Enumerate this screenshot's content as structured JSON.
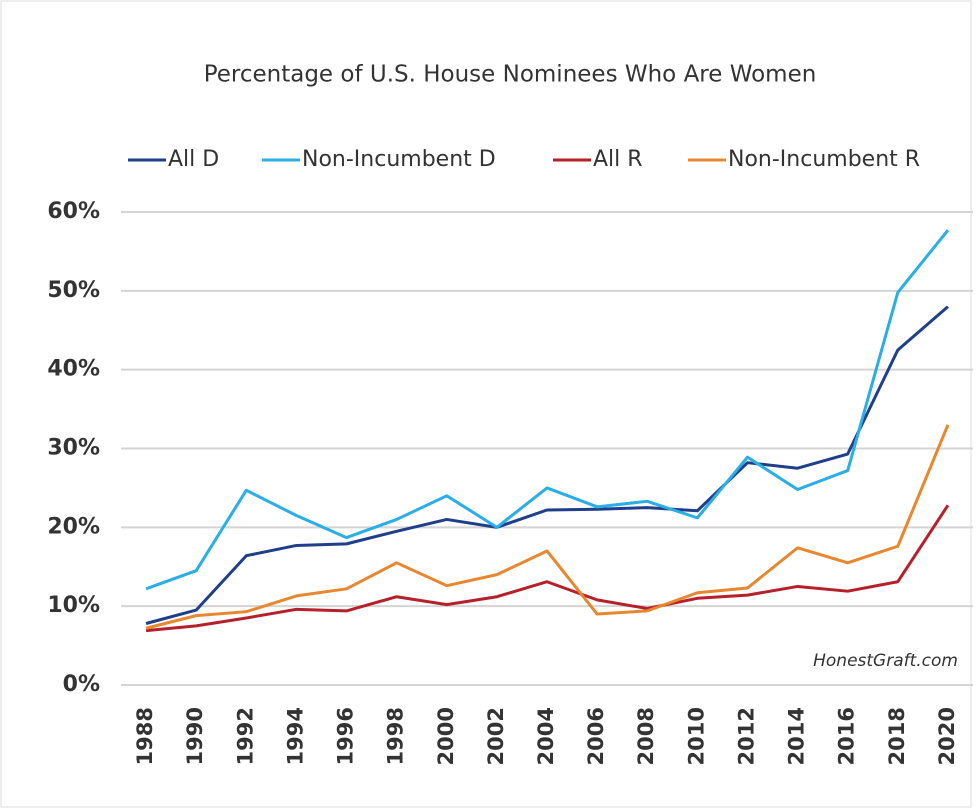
{
  "chart_data": {
    "type": "line",
    "title": "Percentage of U.S. House Nominees Who Are Women",
    "annotation": "HonestGraft.com",
    "categories": [
      "1988",
      "1990",
      "1992",
      "1994",
      "1996",
      "1998",
      "2000",
      "2002",
      "2004",
      "2006",
      "2008",
      "2010",
      "2012",
      "2014",
      "2016",
      "2018",
      "2020"
    ],
    "series": [
      {
        "name": "All D",
        "color": "#1f3f8a",
        "values": [
          7.8,
          9.5,
          16.4,
          17.7,
          17.9,
          19.5,
          21,
          20,
          22.2,
          22.3,
          22.5,
          22.1,
          28.2,
          27.5,
          29.3,
          42.5,
          48
        ]
      },
      {
        "name": "Non-Incumbent D",
        "color": "#29aee6",
        "values": [
          12.2,
          14.5,
          24.7,
          21.5,
          18.7,
          21,
          24,
          20,
          25,
          22.6,
          23.3,
          21.2,
          28.9,
          24.8,
          27.2,
          49.8,
          57.7
        ]
      },
      {
        "name": "All R",
        "color": "#b5202a",
        "values": [
          6.9,
          7.5,
          8.5,
          9.6,
          9.4,
          11.2,
          10.2,
          11.2,
          13.1,
          10.8,
          9.7,
          11,
          11.4,
          12.5,
          11.9,
          13.1,
          22.8
        ]
      },
      {
        "name": "Non-Incumbent R",
        "color": "#e8872e",
        "values": [
          7.2,
          8.8,
          9.3,
          11.3,
          12.2,
          15.5,
          12.6,
          14,
          17,
          9,
          9.4,
          11.7,
          12.3,
          17.4,
          15.5,
          17.6,
          33
        ]
      }
    ],
    "ylim": [
      0,
      60
    ],
    "yticks": [
      {
        "value": 0,
        "label": "0%"
      },
      {
        "value": 10,
        "label": "10%"
      },
      {
        "value": 20,
        "label": "20%"
      },
      {
        "value": 30,
        "label": "30%"
      },
      {
        "value": 40,
        "label": "40%"
      },
      {
        "value": 50,
        "label": "50%"
      },
      {
        "value": 60,
        "label": "60%"
      }
    ],
    "grid": true,
    "legend": "top"
  }
}
